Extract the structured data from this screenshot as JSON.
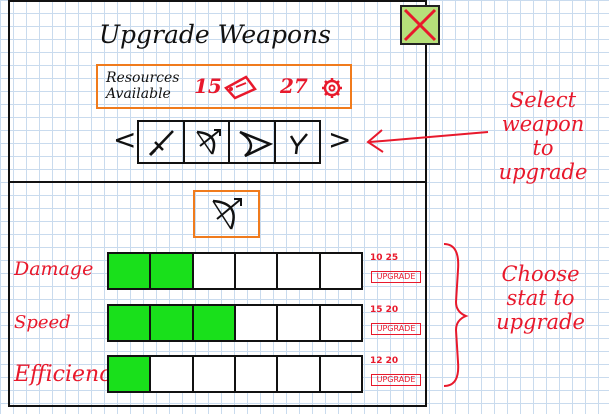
{
  "title": "Upgrade Weapons",
  "resources": {
    "label_line1": "Resources",
    "label_line2": "Available",
    "ticket_count": "15",
    "gear_count": "27"
  },
  "weapons": {
    "prev": "<",
    "next": ">",
    "items": [
      "sword-icon",
      "bow-icon",
      "boomerang-icon",
      "slingshot-icon"
    ]
  },
  "selected_weapon": "bow-icon",
  "stats": [
    {
      "label": "Damage",
      "level": 2,
      "max": 6,
      "cost": "10 25",
      "button": "UPGRADE"
    },
    {
      "label": "Speed",
      "level": 3,
      "max": 6,
      "cost": "15 20",
      "button": "UPGRADE"
    },
    {
      "label": "Efficiency",
      "level": 1,
      "max": 6,
      "cost": "12 20",
      "button": "UPGRADE"
    }
  ],
  "annotations": {
    "select_weapon": [
      "Select",
      "weapon",
      "to",
      "upgrade"
    ],
    "choose_stat": [
      "Choose",
      "stat to",
      "upgrade"
    ]
  },
  "colors": {
    "accent": "#e8192c",
    "frame": "#f07b1c",
    "fill": "#19e01b",
    "close": "#b6e07a"
  }
}
